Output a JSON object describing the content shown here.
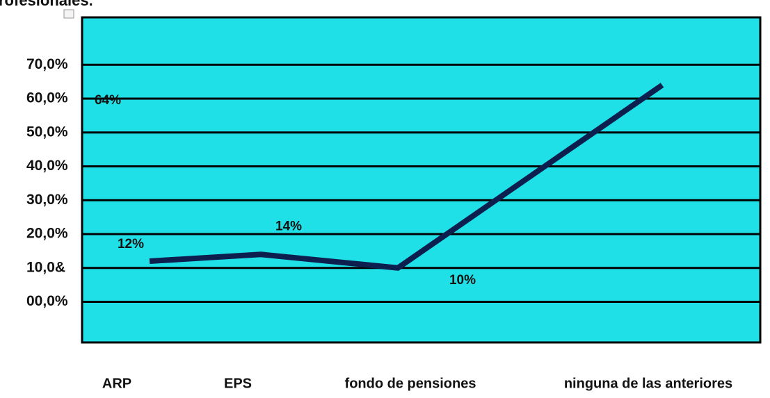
{
  "chart_data": {
    "type": "line",
    "title": "rofesionales.",
    "categories": [
      "ARP",
      "EPS",
      "fondo de pensiones",
      "ninguna de las anteriores"
    ],
    "values": [
      12,
      14,
      10,
      64
    ],
    "value_labels": [
      "12%",
      "14%",
      "10%",
      "64%"
    ],
    "color": "#0d1f4f",
    "background": "#1fe0e6",
    "ylim": [
      -12,
      84
    ],
    "yticks": [
      {
        "value": 0,
        "label": "00,0%"
      },
      {
        "value": 10,
        "label": "10,0&"
      },
      {
        "value": 20,
        "label": "20,0%"
      },
      {
        "value": 30,
        "label": "30,0%"
      },
      {
        "value": 40,
        "label": "40,0%"
      },
      {
        "value": 50,
        "label": "50,0%"
      },
      {
        "value": 60,
        "label": "60,0%"
      },
      {
        "value": 70,
        "label": "70,0%"
      }
    ],
    "grid": true
  }
}
